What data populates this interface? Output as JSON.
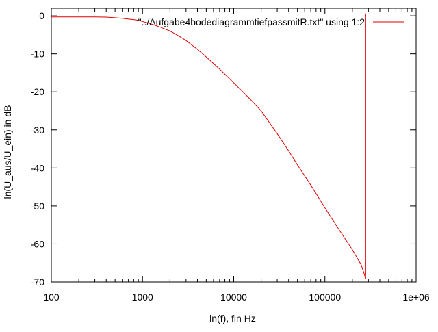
{
  "chart_data": {
    "type": "line",
    "title": "",
    "xlabel": "ln(f), fin Hz",
    "ylabel": "ln(U_aus/U_ein) in dB",
    "xscale": "log",
    "xlim": [
      100,
      1000000
    ],
    "ylim": [
      -70,
      2
    ],
    "xticks": [
      100,
      1000,
      10000,
      100000,
      1000000
    ],
    "xtick_labels": [
      "100",
      "1000",
      "10000",
      "100000",
      "1e+06"
    ],
    "yticks": [
      0,
      -10,
      -20,
      -30,
      -40,
      -50,
      -60,
      -70
    ],
    "ytick_labels": [
      "0",
      "-10",
      "-20",
      "-30",
      "-40",
      "-50",
      "-60",
      "-70"
    ],
    "grid": false,
    "legend": "top-right",
    "series": [
      {
        "name": "\"../Aufgabe4bodediagrammtiefpassmitR.txt\" using 1:2",
        "color": "#e00000",
        "x": [
          100,
          200,
          300,
          400,
          500,
          600,
          700,
          800,
          900,
          1000,
          1200,
          1500,
          2000,
          2500,
          3000,
          4000,
          5000,
          7000,
          10000,
          15000,
          20000,
          30000,
          40000,
          50000,
          70000,
          100000,
          150000,
          200000,
          250000,
          275000,
          280000,
          280000,
          285000
        ],
        "y": [
          -0.3,
          -0.3,
          -0.3,
          -0.35,
          -0.5,
          -0.65,
          -0.85,
          -1.0,
          -1.2,
          -1.5,
          -2.0,
          -2.8,
          -4.0,
          -5.3,
          -6.5,
          -8.8,
          -10.8,
          -14.0,
          -17.6,
          -21.8,
          -25.0,
          -31.0,
          -35.5,
          -39.2,
          -44.5,
          -50.5,
          -57.0,
          -61.5,
          -65.5,
          -68.5,
          -69.2,
          0.5,
          0.5
        ]
      }
    ]
  }
}
